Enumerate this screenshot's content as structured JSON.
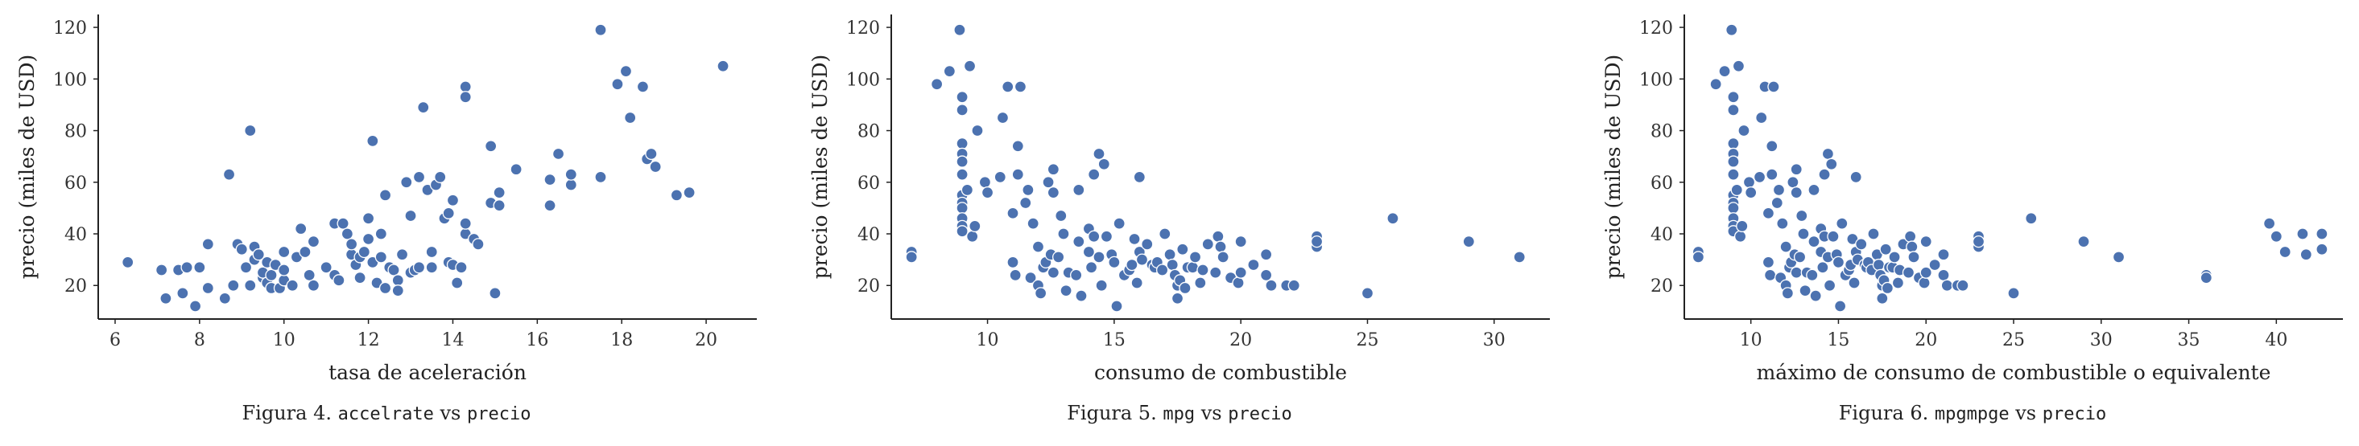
{
  "chart_data": [
    {
      "type": "scatter",
      "caption": {
        "prefix": "Figura 4.",
        "xvar": "accelrate",
        "mid": "vs",
        "yvar": "precio"
      },
      "xlabel": "tasa de aceleración",
      "ylabel": "precio (miles de USD)",
      "xlim": [
        5.6,
        21.2
      ],
      "ylim": [
        7,
        125
      ],
      "xticks": [
        6,
        8,
        10,
        12,
        14,
        16,
        18,
        20
      ],
      "yticks": [
        20,
        40,
        60,
        80,
        100,
        120
      ],
      "grid": false,
      "color": "#4c72b0",
      "points": [
        [
          6.3,
          29
        ],
        [
          7.1,
          26
        ],
        [
          7.2,
          15
        ],
        [
          7.5,
          26
        ],
        [
          7.6,
          17
        ],
        [
          7.7,
          27
        ],
        [
          7.9,
          12
        ],
        [
          8.0,
          27
        ],
        [
          8.2,
          19
        ],
        [
          8.2,
          36
        ],
        [
          8.6,
          15
        ],
        [
          8.7,
          63
        ],
        [
          8.8,
          20
        ],
        [
          8.9,
          36
        ],
        [
          9.0,
          34
        ],
        [
          9.1,
          27
        ],
        [
          9.2,
          80
        ],
        [
          9.2,
          20
        ],
        [
          9.3,
          35
        ],
        [
          9.3,
          30
        ],
        [
          9.4,
          32
        ],
        [
          9.5,
          23
        ],
        [
          9.5,
          25
        ],
        [
          9.6,
          29
        ],
        [
          9.6,
          21
        ],
        [
          9.7,
          24
        ],
        [
          9.7,
          19
        ],
        [
          9.8,
          28
        ],
        [
          9.9,
          19
        ],
        [
          10.0,
          22
        ],
        [
          10.0,
          26
        ],
        [
          10.0,
          33
        ],
        [
          10.2,
          20
        ],
        [
          10.3,
          31
        ],
        [
          10.4,
          42
        ],
        [
          10.5,
          33
        ],
        [
          10.6,
          24
        ],
        [
          10.7,
          37
        ],
        [
          10.7,
          20
        ],
        [
          11.0,
          27
        ],
        [
          11.2,
          44
        ],
        [
          11.2,
          24
        ],
        [
          11.3,
          22
        ],
        [
          11.4,
          44
        ],
        [
          11.5,
          40
        ],
        [
          11.6,
          32
        ],
        [
          11.6,
          36
        ],
        [
          11.7,
          28
        ],
        [
          11.8,
          31
        ],
        [
          11.8,
          23
        ],
        [
          11.9,
          33
        ],
        [
          12.0,
          38
        ],
        [
          12.0,
          46
        ],
        [
          12.1,
          76
        ],
        [
          12.1,
          29
        ],
        [
          12.2,
          21
        ],
        [
          12.3,
          31
        ],
        [
          12.3,
          40
        ],
        [
          12.4,
          55
        ],
        [
          12.4,
          19
        ],
        [
          12.5,
          27
        ],
        [
          12.6,
          26
        ],
        [
          12.7,
          22
        ],
        [
          12.7,
          18
        ],
        [
          12.8,
          32
        ],
        [
          12.9,
          60
        ],
        [
          13.0,
          25
        ],
        [
          13.0,
          47
        ],
        [
          13.1,
          26
        ],
        [
          13.2,
          27
        ],
        [
          13.2,
          62
        ],
        [
          13.3,
          89
        ],
        [
          13.4,
          57
        ],
        [
          13.5,
          27
        ],
        [
          13.5,
          33
        ],
        [
          13.6,
          59
        ],
        [
          13.7,
          62
        ],
        [
          13.8,
          46
        ],
        [
          13.9,
          48
        ],
        [
          13.9,
          29
        ],
        [
          14.0,
          28
        ],
        [
          14.0,
          53
        ],
        [
          14.2,
          27
        ],
        [
          14.1,
          21
        ],
        [
          14.3,
          97
        ],
        [
          14.3,
          93
        ],
        [
          14.3,
          40
        ],
        [
          14.3,
          44
        ],
        [
          14.5,
          38
        ],
        [
          14.6,
          36
        ],
        [
          14.9,
          74
        ],
        [
          14.9,
          52
        ],
        [
          15.0,
          17
        ],
        [
          15.1,
          56
        ],
        [
          15.1,
          51
        ],
        [
          15.5,
          65
        ],
        [
          16.3,
          61
        ],
        [
          16.3,
          51
        ],
        [
          16.5,
          71
        ],
        [
          16.8,
          59
        ],
        [
          16.8,
          63
        ],
        [
          17.5,
          62
        ],
        [
          17.5,
          119
        ],
        [
          17.9,
          98
        ],
        [
          18.1,
          103
        ],
        [
          18.2,
          85
        ],
        [
          18.5,
          97
        ],
        [
          18.6,
          69
        ],
        [
          18.7,
          71
        ],
        [
          18.8,
          66
        ],
        [
          19.3,
          55
        ],
        [
          19.6,
          56
        ],
        [
          20.4,
          105
        ]
      ]
    },
    {
      "type": "scatter",
      "caption": {
        "prefix": "Figura 5.",
        "xvar": "mpg",
        "mid": "vs",
        "yvar": "precio"
      },
      "xlabel": "consumo de combustible",
      "ylabel": "precio (miles de USD)",
      "xlim": [
        6.2,
        32.2
      ],
      "ylim": [
        7,
        125
      ],
      "xticks": [
        10,
        15,
        20,
        25,
        30
      ],
      "yticks": [
        20,
        40,
        60,
        80,
        100,
        120
      ],
      "grid": false,
      "color": "#4c72b0",
      "points": [
        [
          7,
          33
        ],
        [
          7,
          31
        ],
        [
          8,
          98
        ],
        [
          8.5,
          103
        ],
        [
          8.9,
          119
        ],
        [
          9,
          93
        ],
        [
          9,
          88
        ],
        [
          9,
          75
        ],
        [
          9,
          71
        ],
        [
          9,
          68
        ],
        [
          9,
          63
        ],
        [
          9,
          55
        ],
        [
          9,
          52
        ],
        [
          9,
          50
        ],
        [
          9,
          46
        ],
        [
          9,
          43
        ],
        [
          9,
          41
        ],
        [
          9.2,
          57
        ],
        [
          9.3,
          105
        ],
        [
          9.4,
          39
        ],
        [
          9.5,
          43
        ],
        [
          9.6,
          80
        ],
        [
          9.9,
          60
        ],
        [
          10,
          56
        ],
        [
          10.5,
          62
        ],
        [
          10.6,
          85
        ],
        [
          10.8,
          97
        ],
        [
          11,
          48
        ],
        [
          11,
          29
        ],
        [
          11.1,
          24
        ],
        [
          11.2,
          74
        ],
        [
          11.2,
          63
        ],
        [
          11.3,
          97
        ],
        [
          11.5,
          52
        ],
        [
          11.6,
          57
        ],
        [
          11.7,
          23
        ],
        [
          11.8,
          44
        ],
        [
          12,
          35
        ],
        [
          12,
          20
        ],
        [
          12.1,
          17
        ],
        [
          12.2,
          27
        ],
        [
          12.3,
          29
        ],
        [
          12.4,
          60
        ],
        [
          12.5,
          32
        ],
        [
          12.6,
          25
        ],
        [
          12.6,
          65
        ],
        [
          12.6,
          56
        ],
        [
          12.8,
          31
        ],
        [
          12.9,
          47
        ],
        [
          13.0,
          40
        ],
        [
          13.1,
          18
        ],
        [
          13.2,
          25
        ],
        [
          13.5,
          24
        ],
        [
          13.6,
          37
        ],
        [
          13.6,
          57
        ],
        [
          13.7,
          16
        ],
        [
          14,
          42
        ],
        [
          14,
          33
        ],
        [
          14.1,
          27
        ],
        [
          14.2,
          63
        ],
        [
          14.2,
          39
        ],
        [
          14.4,
          71
        ],
        [
          14.4,
          31
        ],
        [
          14.5,
          20
        ],
        [
          14.6,
          67
        ],
        [
          14.7,
          39
        ],
        [
          14.9,
          32
        ],
        [
          15,
          29
        ],
        [
          15.1,
          12
        ],
        [
          15.2,
          44
        ],
        [
          15.4,
          24
        ],
        [
          15.6,
          26
        ],
        [
          15.7,
          28
        ],
        [
          15.8,
          38
        ],
        [
          15.9,
          21
        ],
        [
          16,
          33
        ],
        [
          16,
          62
        ],
        [
          16.1,
          30
        ],
        [
          16.3,
          36
        ],
        [
          16.5,
          28
        ],
        [
          16.6,
          27
        ],
        [
          16.7,
          29
        ],
        [
          16.9,
          26
        ],
        [
          17,
          40
        ],
        [
          17.2,
          32
        ],
        [
          17.3,
          28
        ],
        [
          17.4,
          24
        ],
        [
          17.5,
          20
        ],
        [
          17.5,
          15
        ],
        [
          17.6,
          22
        ],
        [
          17.7,
          34
        ],
        [
          17.8,
          19
        ],
        [
          17.9,
          27
        ],
        [
          18.1,
          27
        ],
        [
          18.2,
          31
        ],
        [
          18.4,
          21
        ],
        [
          18.5,
          26
        ],
        [
          18.7,
          36
        ],
        [
          19,
          25
        ],
        [
          19.1,
          39
        ],
        [
          19.2,
          35
        ],
        [
          19.3,
          31
        ],
        [
          19.6,
          23
        ],
        [
          19.9,
          21
        ],
        [
          20,
          25
        ],
        [
          20,
          37
        ],
        [
          20.5,
          28
        ],
        [
          21,
          24
        ],
        [
          21,
          32
        ],
        [
          21.2,
          20
        ],
        [
          21.8,
          20
        ],
        [
          22.1,
          20
        ],
        [
          23,
          39
        ],
        [
          23,
          35
        ],
        [
          23,
          37
        ],
        [
          26,
          46
        ],
        [
          25,
          17
        ],
        [
          29,
          37
        ],
        [
          31,
          31
        ]
      ]
    },
    {
      "type": "scatter",
      "caption": {
        "prefix": "Figura 6.",
        "xvar": "mpgmpge",
        "mid": "vs",
        "yvar": "precio"
      },
      "xlabel": "máximo de consumo de combustible o equivalente",
      "ylabel": "precio (miles de USD)",
      "xlim": [
        6.2,
        43.8
      ],
      "ylim": [
        7,
        125
      ],
      "xticks": [
        10,
        15,
        20,
        25,
        30,
        35,
        40
      ],
      "yticks": [
        20,
        40,
        60,
        80,
        100,
        120
      ],
      "grid": false,
      "color": "#4c72b0",
      "points": [
        [
          7,
          33
        ],
        [
          7,
          31
        ],
        [
          8,
          98
        ],
        [
          8.5,
          103
        ],
        [
          8.9,
          119
        ],
        [
          9,
          93
        ],
        [
          9,
          88
        ],
        [
          9,
          75
        ],
        [
          9,
          71
        ],
        [
          9,
          68
        ],
        [
          9,
          63
        ],
        [
          9,
          55
        ],
        [
          9,
          52
        ],
        [
          9,
          50
        ],
        [
          9,
          46
        ],
        [
          9,
          43
        ],
        [
          9,
          41
        ],
        [
          9.2,
          57
        ],
        [
          9.3,
          105
        ],
        [
          9.4,
          39
        ],
        [
          9.5,
          43
        ],
        [
          9.6,
          80
        ],
        [
          9.9,
          60
        ],
        [
          10,
          56
        ],
        [
          10.5,
          62
        ],
        [
          10.6,
          85
        ],
        [
          10.8,
          97
        ],
        [
          11,
          48
        ],
        [
          11,
          29
        ],
        [
          11.1,
          24
        ],
        [
          11.2,
          74
        ],
        [
          11.2,
          63
        ],
        [
          11.3,
          97
        ],
        [
          11.5,
          52
        ],
        [
          11.6,
          57
        ],
        [
          11.7,
          23
        ],
        [
          11.8,
          44
        ],
        [
          12,
          35
        ],
        [
          12,
          20
        ],
        [
          12.1,
          17
        ],
        [
          12.2,
          27
        ],
        [
          12.3,
          29
        ],
        [
          12.4,
          60
        ],
        [
          12.5,
          32
        ],
        [
          12.6,
          25
        ],
        [
          12.6,
          65
        ],
        [
          12.6,
          56
        ],
        [
          12.8,
          31
        ],
        [
          12.9,
          47
        ],
        [
          13.0,
          40
        ],
        [
          13.1,
          18
        ],
        [
          13.2,
          25
        ],
        [
          13.5,
          24
        ],
        [
          13.6,
          37
        ],
        [
          13.6,
          57
        ],
        [
          13.7,
          16
        ],
        [
          14,
          42
        ],
        [
          14,
          33
        ],
        [
          14.1,
          27
        ],
        [
          14.2,
          63
        ],
        [
          14.2,
          39
        ],
        [
          14.4,
          71
        ],
        [
          14.4,
          31
        ],
        [
          14.5,
          20
        ],
        [
          14.6,
          67
        ],
        [
          14.7,
          39
        ],
        [
          14.9,
          32
        ],
        [
          15,
          29
        ],
        [
          15.1,
          12
        ],
        [
          15.2,
          44
        ],
        [
          15.4,
          24
        ],
        [
          15.6,
          26
        ],
        [
          15.7,
          28
        ],
        [
          15.8,
          38
        ],
        [
          15.9,
          21
        ],
        [
          16,
          33
        ],
        [
          16,
          62
        ],
        [
          16.1,
          30
        ],
        [
          16.3,
          36
        ],
        [
          16.5,
          28
        ],
        [
          16.6,
          27
        ],
        [
          16.7,
          29
        ],
        [
          16.9,
          26
        ],
        [
          17,
          40
        ],
        [
          17.2,
          32
        ],
        [
          17.3,
          28
        ],
        [
          17.4,
          24
        ],
        [
          17.5,
          20
        ],
        [
          17.5,
          15
        ],
        [
          17.6,
          22
        ],
        [
          17.7,
          34
        ],
        [
          17.8,
          19
        ],
        [
          17.9,
          27
        ],
        [
          18.1,
          27
        ],
        [
          18.2,
          31
        ],
        [
          18.4,
          21
        ],
        [
          18.5,
          26
        ],
        [
          18.7,
          36
        ],
        [
          19,
          25
        ],
        [
          19.1,
          39
        ],
        [
          19.2,
          35
        ],
        [
          19.3,
          31
        ],
        [
          19.6,
          23
        ],
        [
          19.9,
          21
        ],
        [
          20,
          25
        ],
        [
          20,
          37
        ],
        [
          20.5,
          28
        ],
        [
          21,
          24
        ],
        [
          21,
          32
        ],
        [
          21.2,
          20
        ],
        [
          21.8,
          20
        ],
        [
          22.1,
          20
        ],
        [
          23,
          39
        ],
        [
          23,
          35
        ],
        [
          23,
          37
        ],
        [
          26,
          46
        ],
        [
          25,
          17
        ],
        [
          29,
          37
        ],
        [
          31,
          31
        ],
        [
          36,
          24
        ],
        [
          36,
          23
        ],
        [
          39.6,
          44
        ],
        [
          40,
          39
        ],
        [
          40.5,
          33
        ],
        [
          41.5,
          40
        ],
        [
          41.7,
          32
        ],
        [
          42.6,
          40
        ],
        [
          42.6,
          34
        ]
      ]
    }
  ]
}
